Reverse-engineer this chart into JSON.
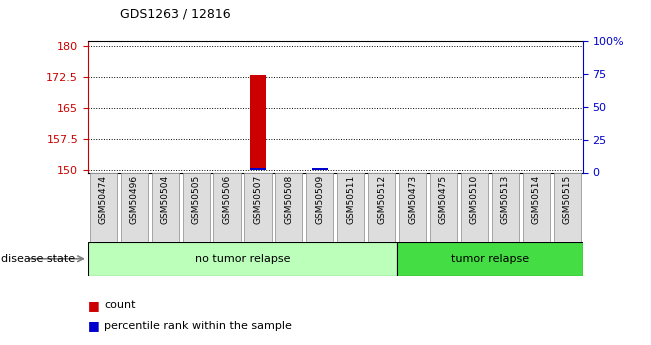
{
  "title": "GDS1263 / 12816",
  "samples": [
    "GSM50474",
    "GSM50496",
    "GSM50504",
    "GSM50505",
    "GSM50506",
    "GSM50507",
    "GSM50508",
    "GSM50509",
    "GSM50511",
    "GSM50512",
    "GSM50473",
    "GSM50475",
    "GSM50510",
    "GSM50513",
    "GSM50514",
    "GSM50515"
  ],
  "red_bar_index": 5,
  "red_bar_value": 173.0,
  "blue_bar_index": 5,
  "blue_bar_value": 150.5,
  "blue_bar2_index": 7,
  "blue_bar2_value": 150.5,
  "ylim_left": [
    149.5,
    181.0
  ],
  "ylim_right": [
    0,
    100
  ],
  "yticks_left": [
    150,
    157.5,
    165,
    172.5,
    180
  ],
  "ytick_labels_left": [
    "150",
    "157.5",
    "165",
    "172.5",
    "180"
  ],
  "yticks_right": [
    0,
    25,
    50,
    75,
    100
  ],
  "ytick_labels_right": [
    "0",
    "25",
    "50",
    "75",
    "100%"
  ],
  "group1_label": "no tumor relapse",
  "group2_label": "tumor relapse",
  "group1_count": 10,
  "group1_color": "#bbffbb",
  "group2_color": "#44dd44",
  "disease_state_label": "disease state",
  "legend_red": "count",
  "legend_blue": "percentile rank within the sample",
  "red_color": "#cc0000",
  "blue_color": "#0000cc",
  "tick_color_left": "#cc0000",
  "tick_color_right": "#0000cc",
  "box_facecolor": "#dddddd",
  "box_edgecolor": "#999999"
}
